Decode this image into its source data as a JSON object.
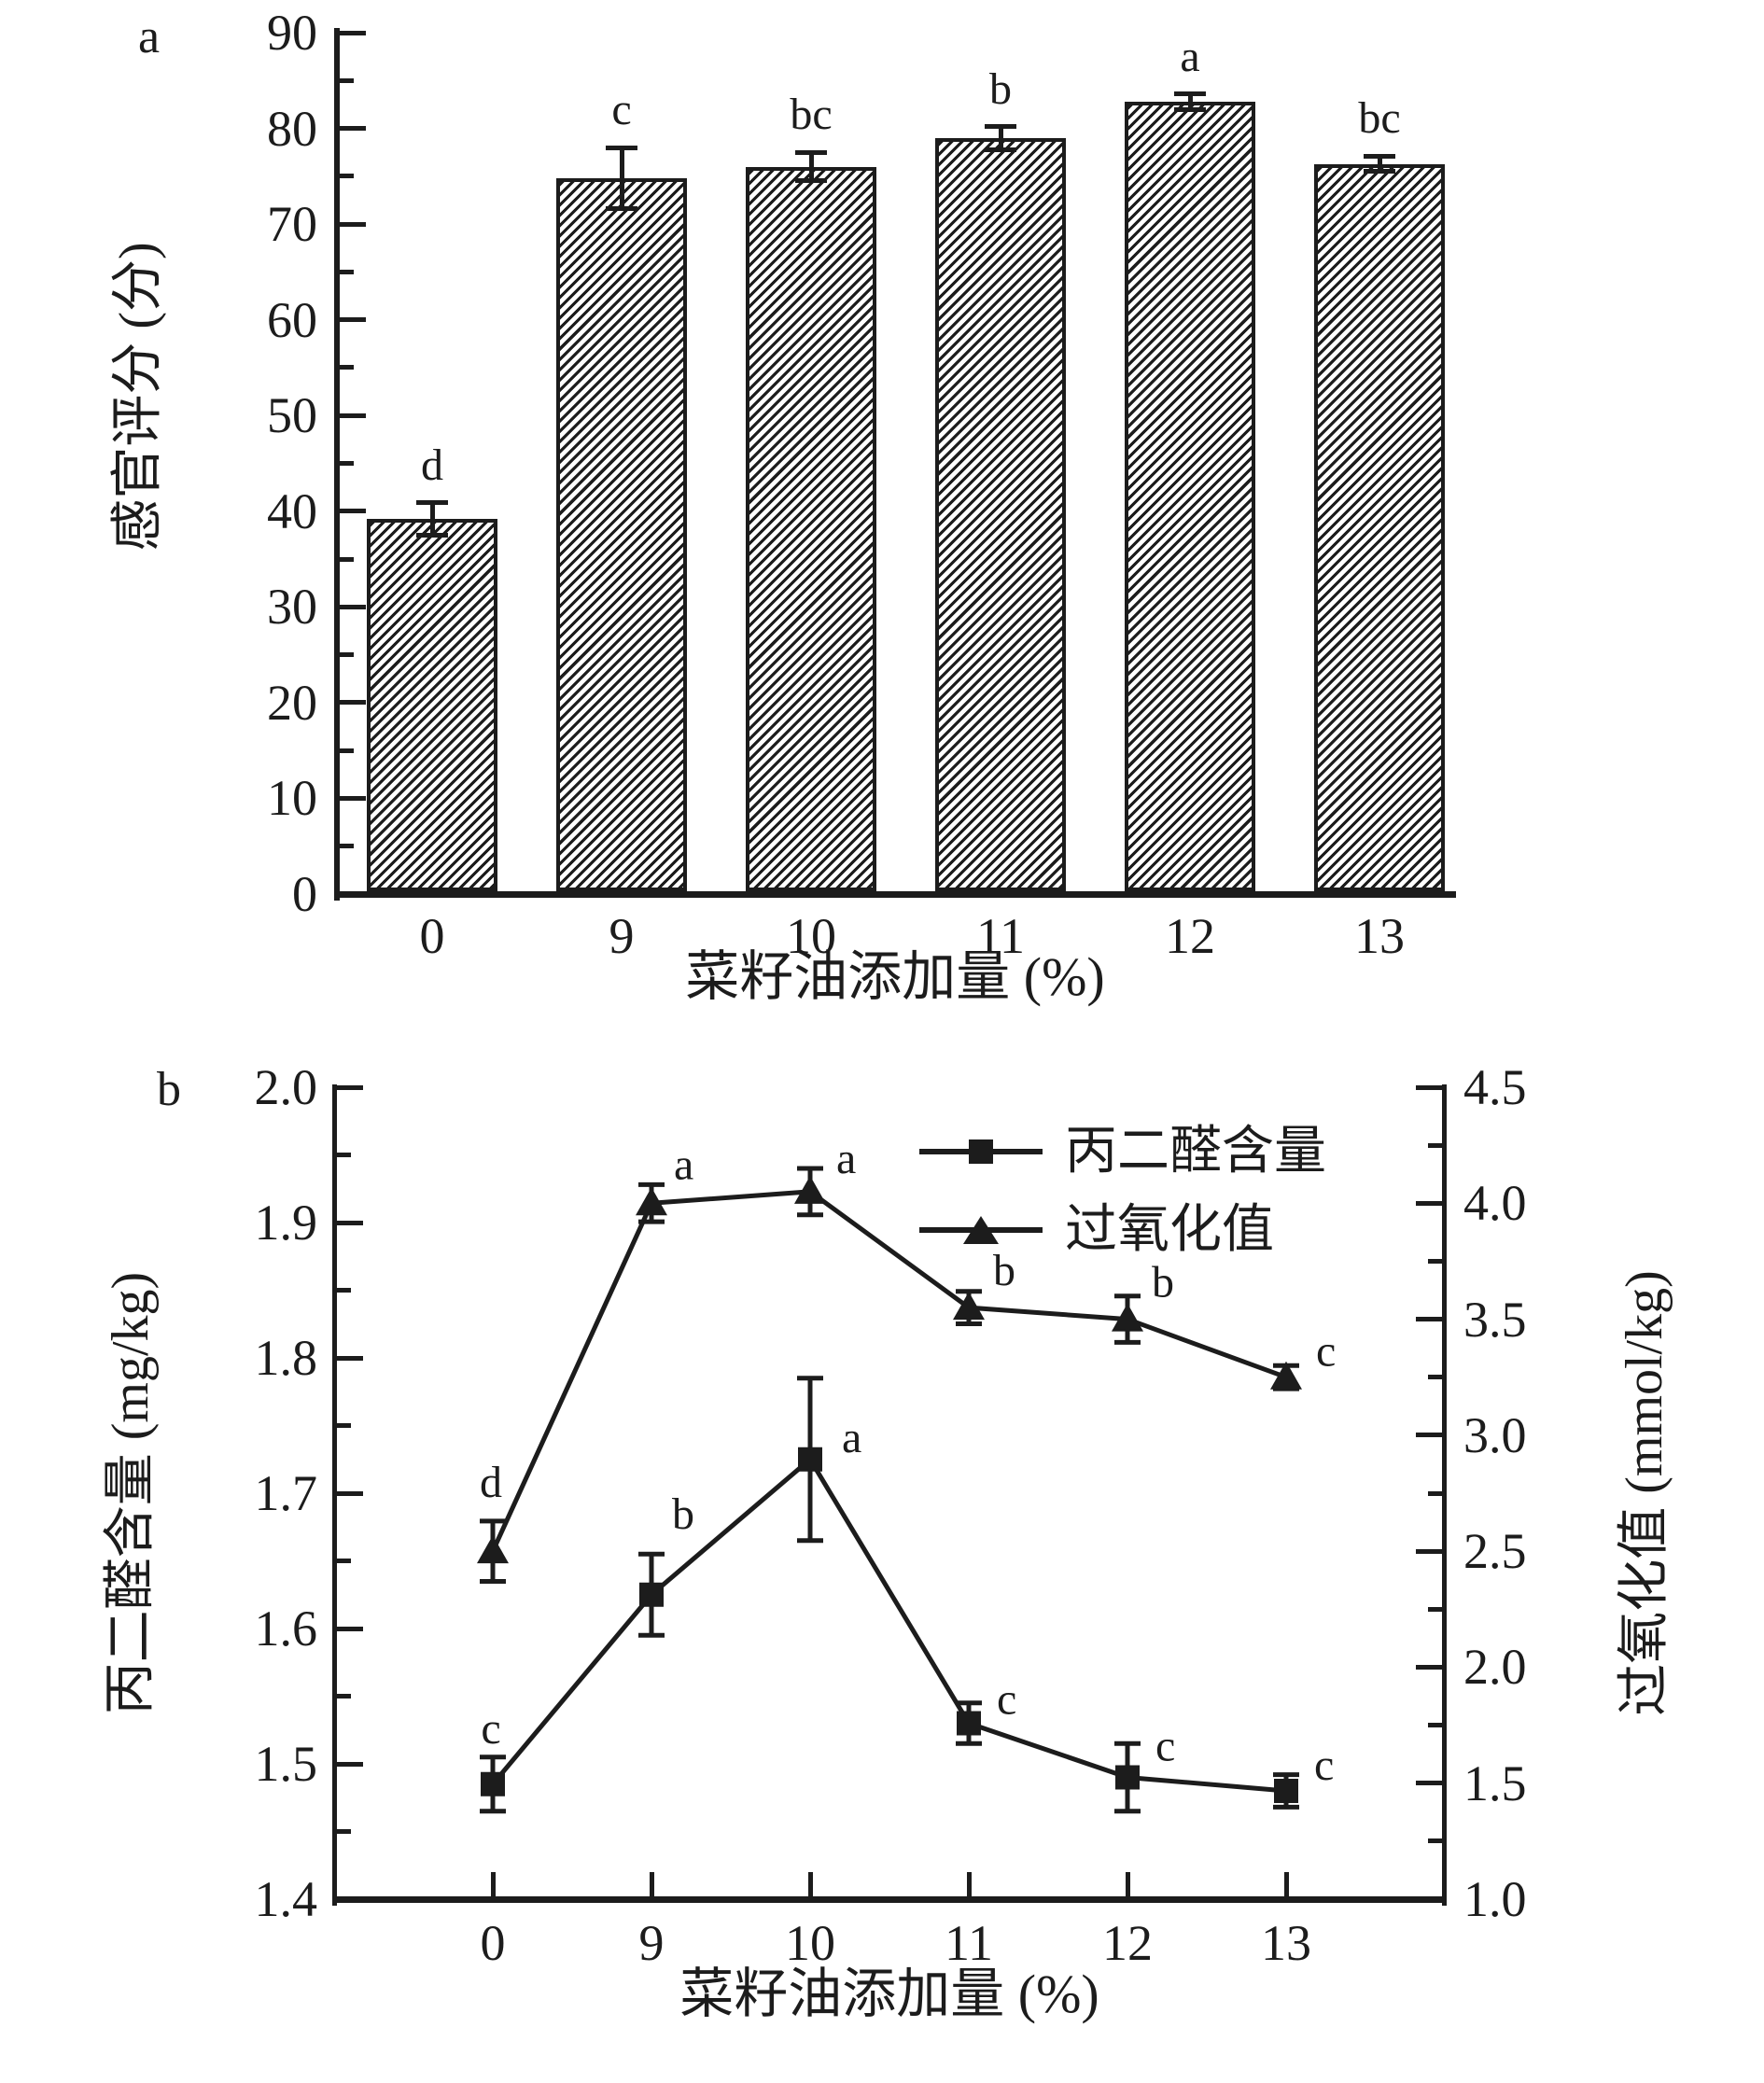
{
  "ink_color": "#1c1c1c",
  "background_color": "#ffffff",
  "chart_data": [
    {
      "id": "panel_a",
      "type": "bar",
      "panel_label": "a",
      "categories": [
        "0",
        "9",
        "10",
        "11",
        "12",
        "13"
      ],
      "values": [
        39.2,
        74.8,
        76.0,
        79.0,
        82.8,
        76.3
      ],
      "errors": [
        1.7,
        3.2,
        1.5,
        1.2,
        0.8,
        0.8
      ],
      "sig_letters": [
        "d",
        "c",
        "bc",
        "b",
        "a",
        "bc"
      ],
      "xlabel": "菜籽油添加量 (%)",
      "ylabel": "感官评分 (分)",
      "ylim": [
        0,
        90
      ],
      "y_tick_labels": [
        "0",
        "10",
        "20",
        "30",
        "40",
        "50",
        "60",
        "70",
        "80",
        "90"
      ],
      "y_minor_step": 5,
      "grid": "off",
      "bar_style": {
        "fill": "#ffffff",
        "hatch": "diagonal-forward",
        "edge_color": "#1c1c1c"
      }
    },
    {
      "id": "panel_b",
      "type": "line",
      "panel_label": "b",
      "categories": [
        "0",
        "9",
        "10",
        "11",
        "12",
        "13"
      ],
      "xlabel": "菜籽油添加量 (%)",
      "ylabel_left": "丙二醛含量 (mg/kg)",
      "ylabel_right": "过氧化值 (mmol/kg)",
      "ylim_left": [
        1.4,
        2.0
      ],
      "left_tick_labels": [
        "1.4",
        "1.5",
        "1.6",
        "1.7",
        "1.8",
        "1.9",
        "2.0"
      ],
      "left_minor_step": 0.05,
      "ylim_right": [
        1.0,
        4.5
      ],
      "right_tick_labels": [
        "1.0",
        "1.5",
        "2.0",
        "2.5",
        "3.0",
        "3.5",
        "4.0",
        "4.5"
      ],
      "right_minor_step": 0.25,
      "grid": "off",
      "legend": {
        "position": "top-right",
        "items": [
          "丙二醛含量",
          "过氧化值"
        ]
      },
      "series": [
        {
          "name": "丙二醛含量",
          "axis": "left",
          "marker": "square",
          "values": [
            1.485,
            1.625,
            1.725,
            1.53,
            1.49,
            1.48
          ],
          "errors": [
            0.02,
            0.03,
            0.06,
            0.015,
            0.025,
            0.012
          ],
          "sig_letters": [
            "c",
            "b",
            "a",
            "c",
            "c",
            "c"
          ]
        },
        {
          "name": "过氧化值",
          "axis": "right",
          "marker": "triangle",
          "values": [
            2.5,
            4.0,
            4.05,
            3.55,
            3.5,
            3.25
          ],
          "errors": [
            0.13,
            0.08,
            0.1,
            0.07,
            0.1,
            0.05
          ],
          "sig_letters": [
            "d",
            "a",
            "a",
            "b",
            "b",
            "c"
          ]
        }
      ]
    }
  ]
}
